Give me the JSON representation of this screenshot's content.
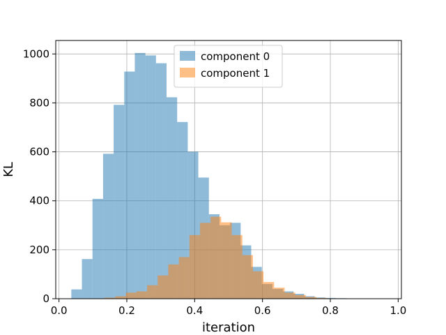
{
  "chart_data": {
    "type": "bar",
    "subtype": "histogram",
    "title": "",
    "xlabel": "iteration",
    "ylabel": "KL",
    "xlim": [
      -0.0095,
      1.0095
    ],
    "ylim": [
      0,
      1055
    ],
    "xticks": [
      0.0,
      0.2,
      0.4,
      0.6,
      0.8,
      1.0
    ],
    "xtick_labels": [
      "0.0",
      "0.2",
      "0.4",
      "0.6",
      "0.8",
      "1.0"
    ],
    "yticks": [
      0,
      200,
      400,
      600,
      800,
      1000
    ],
    "ytick_labels": [
      "0",
      "200",
      "400",
      "600",
      "800",
      "1000"
    ],
    "grid": true,
    "legend": {
      "position": "top-center"
    },
    "series": [
      {
        "name": "component 0",
        "color": "#1f77b4",
        "alpha": 0.5,
        "bin_edges": [
          0.0364,
          0.0676,
          0.0988,
          0.13,
          0.1612,
          0.1924,
          0.2236,
          0.2548,
          0.286,
          0.3172,
          0.3484,
          0.3796,
          0.4108,
          0.442,
          0.4732,
          0.5044,
          0.5356,
          0.5668,
          0.598,
          0.6292,
          0.6604,
          0.6916,
          0.7228,
          0.754,
          0.7852,
          0.8164,
          0.8476,
          0.8788,
          0.91,
          0.9412,
          0.9724
        ],
        "counts": [
          38,
          162,
          408,
          592,
          792,
          928,
          1004,
          994,
          962,
          823,
          722,
          601,
          495,
          345,
          300,
          310,
          218,
          130,
          60,
          40,
          30,
          20,
          10,
          5,
          3,
          2,
          0,
          0,
          0,
          0
        ]
      },
      {
        "name": "component 1",
        "color": "#ff7f0e",
        "alpha": 0.5,
        "bin_edges": [
          0.135,
          0.1662,
          0.1974,
          0.2286,
          0.2598,
          0.291,
          0.3222,
          0.3534,
          0.3846,
          0.4158,
          0.447,
          0.4782,
          0.5094,
          0.5406,
          0.5718,
          0.603,
          0.6342,
          0.6654,
          0.6966,
          0.7278,
          0.759,
          0.7902,
          0.8214,
          0.8526,
          0.8838,
          0.915,
          0.9462,
          0.9774
        ],
        "counts": [
          4,
          10,
          25,
          30,
          55,
          95,
          140,
          170,
          260,
          310,
          335,
          312,
          260,
          178,
          112,
          68,
          45,
          25,
          15,
          7,
          3,
          1,
          0,
          0,
          0,
          0,
          0
        ]
      }
    ]
  }
}
